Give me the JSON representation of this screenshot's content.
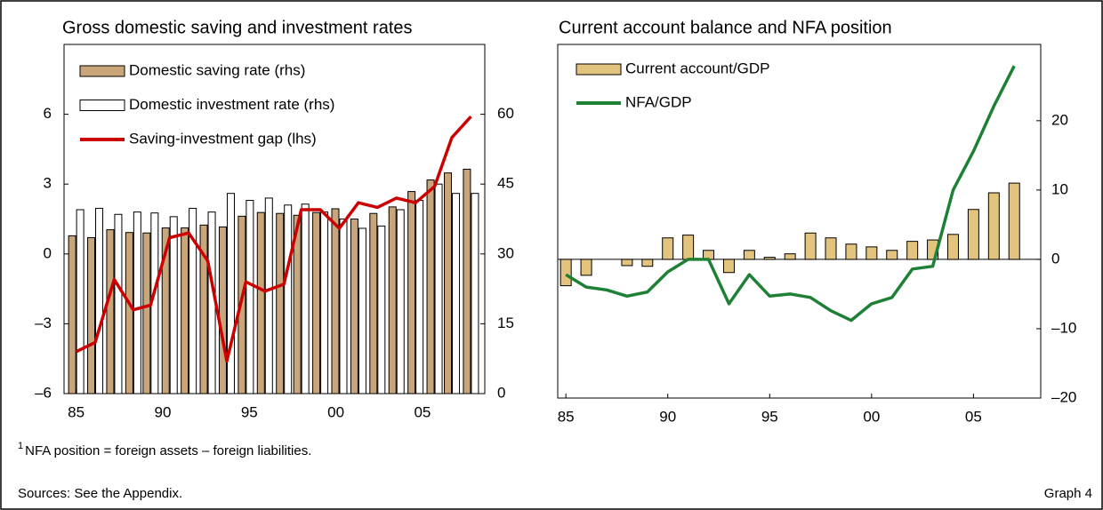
{
  "chart_data": [
    {
      "type": "bar_line",
      "title": "Gross domestic saving and investment rates",
      "x": [
        1985,
        1986.1,
        1987.2,
        1988.3,
        1989.3,
        1990.4,
        1991.5,
        1992.6,
        1993.7,
        1994.8,
        1995.9,
        1997,
        1998,
        1999.1,
        2000.2,
        2001.3,
        2002.4,
        2003.5,
        2004.6,
        2005.7,
        2006.7,
        2007.8
      ],
      "xlim": [
        1984.3,
        2008.6
      ],
      "xticks": [
        {
          "value": 1985,
          "label": "85"
        },
        {
          "value": 1990,
          "label": "90"
        },
        {
          "value": 1995,
          "label": "95"
        },
        {
          "value": 2000,
          "label": "00"
        },
        {
          "value": 2005,
          "label": "05"
        }
      ],
      "ylim": [
        -6,
        9
      ],
      "yticks": [
        {
          "value": -6,
          "label": "–6"
        },
        {
          "value": -3,
          "label": "–3"
        },
        0,
        3,
        6
      ],
      "y2lim": [
        0,
        75
      ],
      "y2ticks": [
        0,
        15,
        30,
        45,
        60
      ],
      "series": [
        {
          "name": "Domestic saving rate (rhs)",
          "type": "bar",
          "axis": "y2",
          "color": "#c9a57a",
          "values": [
            33.9,
            33.5,
            35.2,
            34.6,
            34.5,
            35.6,
            35.6,
            36.2,
            35.8,
            38.1,
            38.9,
            38.7,
            38.3,
            38.9,
            39.7,
            37.5,
            38.7,
            40.1,
            43.4,
            45.9,
            47.4,
            48.2
          ]
        },
        {
          "name": "Domestic investment rate (rhs)",
          "type": "bar",
          "axis": "y2",
          "color": "#ffffff",
          "values": [
            39.5,
            39.8,
            38.5,
            39.0,
            38.8,
            38.0,
            39.8,
            39.0,
            43.0,
            41.5,
            42.0,
            40.5,
            40.7,
            39.0,
            37.5,
            35.5,
            36.0,
            39.5,
            41.5,
            45.0,
            43.0,
            43.0
          ]
        },
        {
          "name": "Saving-investment gap (lhs)",
          "type": "line",
          "color": "#cc0000",
          "values": [
            -4.2,
            -3.8,
            -1.1,
            -2.4,
            -2.2,
            0.7,
            0.9,
            -0.3,
            -4.6,
            -1.2,
            -1.6,
            -1.3,
            1.9,
            1.9,
            1.1,
            2.2,
            2.0,
            2.4,
            2.2,
            2.9,
            5.0,
            5.9
          ]
        }
      ]
    },
    {
      "type": "bar_line",
      "title": "Current account balance and NFA position",
      "x": [
        1985,
        1986,
        1987,
        1988,
        1989,
        1990,
        1991,
        1992,
        1993,
        1994,
        1995,
        1996,
        1997,
        1998,
        1999,
        2000,
        2001,
        2002,
        2003,
        2004,
        2005,
        2006,
        2007
      ],
      "xlim": [
        1984.6,
        2008.3
      ],
      "xticks": [
        {
          "value": 1985,
          "label": "85"
        },
        {
          "value": 1990,
          "label": "90"
        },
        {
          "value": 1995,
          "label": "95"
        },
        {
          "value": 2000,
          "label": "00"
        },
        {
          "value": 2005,
          "label": "05"
        }
      ],
      "ylim": [
        -20,
        31
      ],
      "yticks": [
        {
          "value": -20,
          "label": "–20"
        },
        {
          "value": -10,
          "label": "–10"
        },
        0,
        10,
        20
      ],
      "y_axis_side": "right",
      "zero_line": true,
      "series": [
        {
          "name": "Current account/GDP",
          "type": "bar",
          "color": "#e3c47f",
          "values": [
            -3.8,
            -2.3,
            0,
            -0.9,
            -1.0,
            3.1,
            3.5,
            1.3,
            -1.9,
            1.3,
            0.3,
            0.8,
            3.8,
            3.1,
            2.2,
            1.8,
            1.3,
            2.6,
            2.8,
            3.6,
            7.2,
            9.6,
            11.0
          ]
        },
        {
          "name": "NFA/GDP",
          "type": "line",
          "color": "#1e8035",
          "values": [
            -2.2,
            -4.0,
            -4.4,
            -5.3,
            -4.7,
            -1.8,
            0,
            0,
            -6.4,
            -2.2,
            -5.3,
            -5.0,
            -5.5,
            -7.4,
            -8.8,
            -6.4,
            -5.5,
            -1.4,
            -1.0,
            10.0,
            15.6,
            22.1,
            27.9
          ]
        }
      ]
    }
  ],
  "footnote": {
    "marker": "1",
    "text": "NFA position = foreign assets – foreign liabilities."
  },
  "sources": "Sources: See the Appendix.",
  "graph_label": "Graph 4"
}
